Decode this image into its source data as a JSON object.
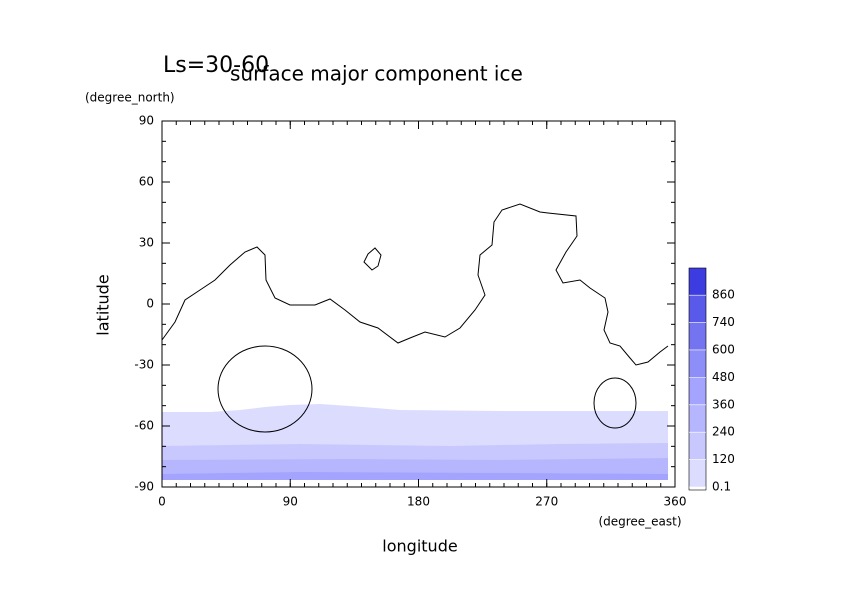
{
  "chart_data": {
    "type": "contour",
    "title": "surface major component ice",
    "subtitle": "Ls=30-60",
    "x_label": "longitude",
    "x_units": "(degree_east)",
    "y_label": "latitude",
    "y_units": "(degree_north)",
    "xlim": [
      0,
      360
    ],
    "xticks": [
      0,
      90,
      180,
      270,
      360
    ],
    "ylim": [
      -90,
      90
    ],
    "yticks": [
      -90,
      -60,
      -30,
      0,
      30,
      60,
      90
    ],
    "levels": [
      0.1,
      120,
      240,
      360,
      480,
      600,
      740,
      860
    ],
    "level_colors": [
      "#dcdcff",
      "#c8c8ff",
      "#b6b6ff",
      "#a4a4ff",
      "#8e8ef8",
      "#7474f0",
      "#5a5aea",
      "#3c3ce0"
    ],
    "line_color": "#000000"
  }
}
